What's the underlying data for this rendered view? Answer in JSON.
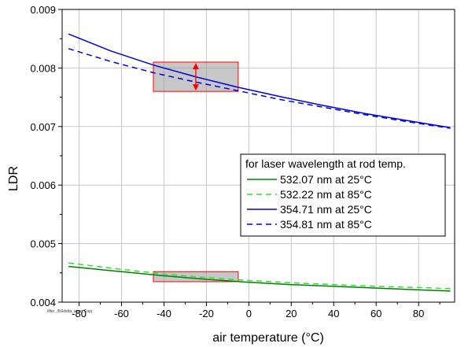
{
  "chart_data": {
    "type": "line",
    "xlabel": "air temperature (°C)",
    "ylabel": "LDR",
    "xlim": [
      -88,
      97
    ],
    "ylim": [
      0.004,
      0.009
    ],
    "x_ticks": [
      -80,
      -60,
      -40,
      -20,
      0,
      20,
      40,
      60,
      80
    ],
    "y_ticks": [
      0.004,
      0.005,
      0.006,
      0.007,
      0.008,
      0.009
    ],
    "x_tick_labels": [
      "-80",
      "-60",
      "-40",
      "-20",
      "0",
      "20",
      "40",
      "60",
      "80"
    ],
    "y_tick_labels": [
      "0.004",
      "0.005",
      "0.006",
      "0.007",
      "0.008",
      "0.009"
    ],
    "grid": true,
    "legend": {
      "title": "for laser wavelength at rod temp.",
      "placement": "center-right"
    },
    "series": [
      {
        "name": "532.07 nm at 25°C",
        "color": "#008000",
        "dash": "solid",
        "x": [
          -85,
          -60,
          -40,
          -20,
          0,
          20,
          40,
          60,
          80,
          95
        ],
        "y": [
          0.00461,
          0.00452,
          0.00445,
          0.00439,
          0.00434,
          0.0043,
          0.00427,
          0.00424,
          0.00421,
          0.00419
        ]
      },
      {
        "name": "532.22 nm at 85°C",
        "color": "#33dd33",
        "dash": "dashed",
        "x": [
          -85,
          -60,
          -40,
          -20,
          0,
          20,
          40,
          60,
          80,
          95
        ],
        "y": [
          0.00467,
          0.00456,
          0.00448,
          0.00442,
          0.00437,
          0.00433,
          0.0043,
          0.00427,
          0.00425,
          0.00423
        ]
      },
      {
        "name": "354.71 nm at 25°C",
        "color": "#0000dd",
        "dash": "solid",
        "x": [
          -85,
          -65,
          -45,
          -25,
          -5,
          15,
          35,
          55,
          75,
          95
        ],
        "y": [
          0.00858,
          0.00829,
          0.00805,
          0.00785,
          0.00767,
          0.00751,
          0.00736,
          0.00722,
          0.0071,
          0.00698
        ]
      },
      {
        "name": "354.81 nm at 85°C",
        "color": "#0000dd",
        "dash": "dashed",
        "x": [
          -85,
          -65,
          -45,
          -25,
          -5,
          15,
          35,
          55,
          75,
          95
        ],
        "y": [
          0.00833,
          0.00811,
          0.00792,
          0.00776,
          0.00761,
          0.00746,
          0.00733,
          0.0072,
          0.00708,
          0.00697
        ]
      }
    ],
    "annotations": [
      {
        "type": "box",
        "x0": -45,
        "x1": -5,
        "y0": 0.0076,
        "y1": 0.0081
      },
      {
        "type": "box",
        "x0": -45,
        "x1": -5,
        "y0": 0.00435,
        "y1": 0.00452
      },
      {
        "type": "double-arrow",
        "x": -25,
        "y0": 0.0076,
        "y1": 0.0081,
        "color": "#ff0000"
      }
    ],
    "footnote": "filter_3\\Gdelta_over_T.opj"
  }
}
